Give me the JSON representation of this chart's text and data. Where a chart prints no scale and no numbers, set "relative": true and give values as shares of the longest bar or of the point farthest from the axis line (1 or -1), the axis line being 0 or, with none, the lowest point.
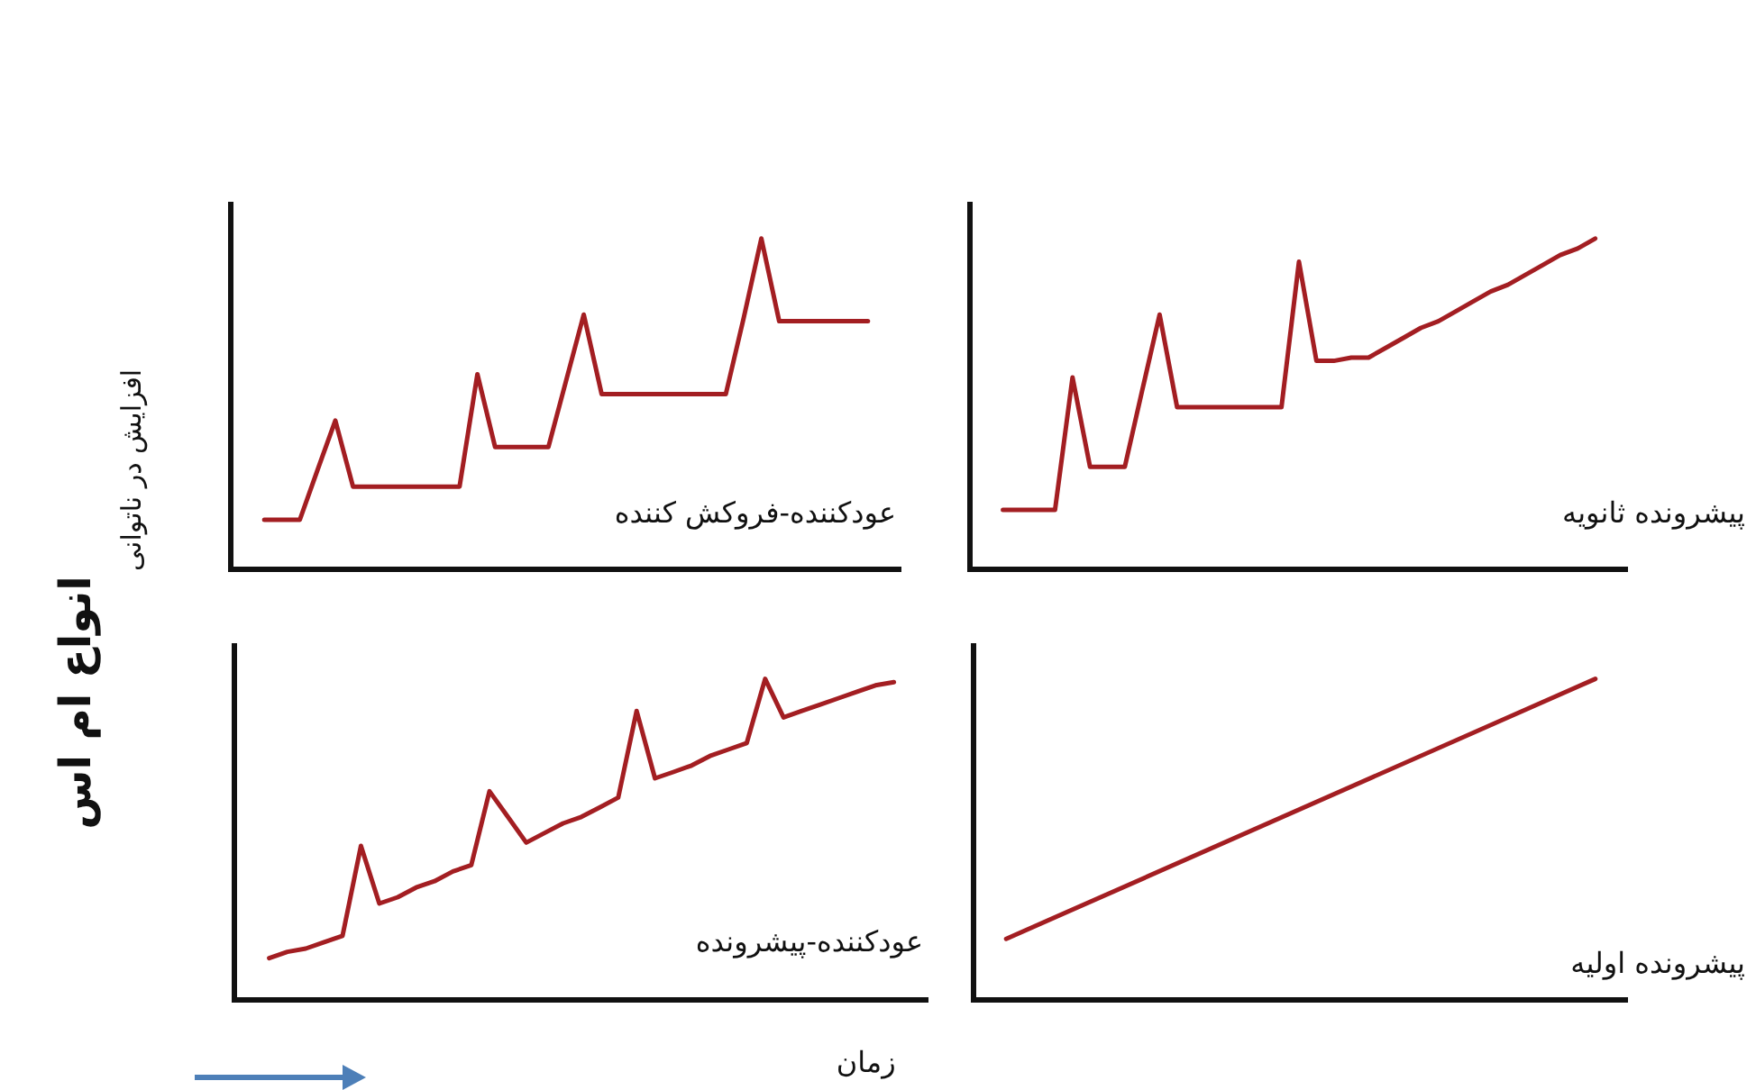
{
  "chart_data": [
    {
      "type": "line",
      "title": "عودکننده-فروکش کننده",
      "ylabel": "افزایش در ناتوانی",
      "annotations": [
        "انواع ام اس"
      ],
      "relative": true,
      "categories": [
        null,
        null,
        null,
        null,
        null,
        null,
        null,
        null,
        null,
        null,
        null,
        null,
        null,
        null,
        null,
        null,
        null,
        null,
        null,
        null,
        null,
        null,
        null,
        null,
        null,
        null,
        null,
        null,
        null,
        null,
        null,
        null,
        null,
        null,
        null
      ],
      "series": [
        {
          "color": "#a31e22",
          "values": [
            0.15,
            0.15,
            0.15,
            0.3,
            0.45,
            0.25,
            0.25,
            0.25,
            0.25,
            0.25,
            0.25,
            0.25,
            0.59,
            0.37,
            0.37,
            0.37,
            0.37,
            0.57,
            0.77,
            0.53,
            0.53,
            0.53,
            0.53,
            0.53,
            0.53,
            0.53,
            0.53,
            0.76,
            1,
            0.75,
            0.75,
            0.75,
            0.75,
            0.75,
            0.75
          ]
        }
      ]
    },
    {
      "type": "line",
      "title": "پیشرونده ثانویه",
      "relative": true,
      "categories": [
        null,
        null,
        null,
        null,
        null,
        null,
        null,
        null,
        null,
        null,
        null,
        null,
        null,
        null,
        null,
        null,
        null,
        null,
        null,
        null,
        null,
        null,
        null,
        null,
        null,
        null,
        null,
        null,
        null,
        null,
        null,
        null,
        null,
        null,
        null
      ],
      "series": [
        {
          "color": "#a31e22",
          "values": [
            0.18,
            0.18,
            0.18,
            0.18,
            0.58,
            0.31,
            0.31,
            0.31,
            0.54,
            0.77,
            0.49,
            0.49,
            0.49,
            0.49,
            0.49,
            0.49,
            0.49,
            0.93,
            0.63,
            0.63,
            0.64,
            0.64,
            0.67,
            0.7,
            0.73,
            0.75,
            0.78,
            0.81,
            0.84,
            0.86,
            0.89,
            0.92,
            0.95,
            0.97,
            1
          ]
        }
      ]
    },
    {
      "type": "line",
      "title": "عودکننده-پیشرونده",
      "xlabel": "زمان",
      "relative": true,
      "categories": [
        null,
        null,
        null,
        null,
        null,
        null,
        null,
        null,
        null,
        null,
        null,
        null,
        null,
        null,
        null,
        null,
        null,
        null,
        null,
        null,
        null,
        null,
        null,
        null,
        null,
        null,
        null,
        null,
        null,
        null,
        null,
        null,
        null,
        null,
        null
      ],
      "series": [
        {
          "color": "#a31e22",
          "values": [
            0.13,
            0.15,
            0.16,
            0.18,
            0.2,
            0.48,
            0.3,
            0.32,
            0.35,
            0.37,
            0.4,
            0.42,
            0.65,
            0.57,
            0.49,
            0.52,
            0.55,
            0.57,
            0.6,
            0.63,
            0.9,
            0.69,
            0.71,
            0.73,
            0.76,
            0.78,
            0.8,
            1,
            0.88,
            0.9,
            0.92,
            0.94,
            0.96,
            0.98,
            0.99
          ]
        }
      ]
    },
    {
      "type": "line",
      "title": "پیشرونده اولیه",
      "relative": true,
      "categories": [
        null,
        null
      ],
      "series": [
        {
          "color": "#a31e22",
          "values": [
            0.19,
            1
          ]
        }
      ]
    }
  ]
}
